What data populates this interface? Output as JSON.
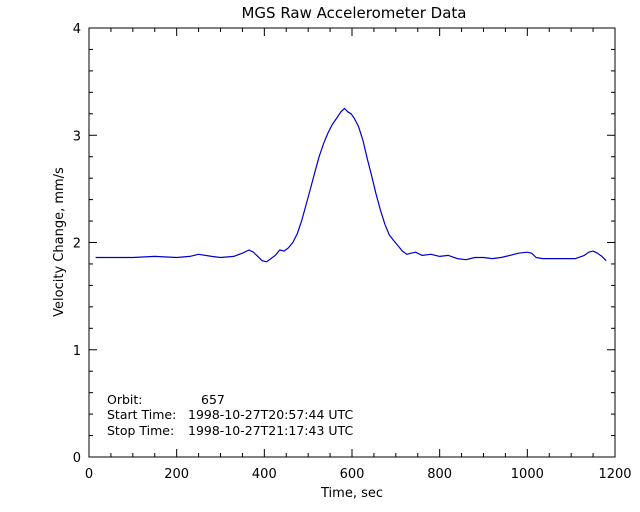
{
  "chart_data": {
    "type": "line",
    "title": "MGS Raw Accelerometer Data",
    "xlabel": "Time, sec",
    "ylabel": "Velocity Change, mm/s",
    "xlim": [
      0,
      1200
    ],
    "ylim": [
      0,
      4
    ],
    "xticks": [
      0,
      200,
      400,
      600,
      800,
      1000,
      1200
    ],
    "yticks": [
      0,
      1,
      2,
      3,
      4
    ],
    "xtick_labels": [
      "0",
      "200",
      "400",
      "600",
      "800",
      "1000",
      "1200"
    ],
    "ytick_labels": [
      "0",
      "1",
      "2",
      "3",
      "4"
    ],
    "grid": false,
    "line_color": "#0000cc",
    "series": [
      {
        "x": [
          15,
          50,
          100,
          150,
          200,
          230,
          250,
          280,
          300,
          330,
          350,
          365,
          375,
          385,
          395,
          405,
          415,
          425,
          435,
          445,
          455,
          465,
          475,
          485,
          495,
          505,
          515,
          525,
          535,
          545,
          555,
          565,
          575,
          583,
          590,
          598,
          605,
          615,
          625,
          635,
          645,
          655,
          665,
          675,
          685,
          695,
          705,
          715,
          725,
          735,
          745,
          760,
          780,
          800,
          820,
          840,
          860,
          880,
          900,
          920,
          940,
          960,
          980,
          1000,
          1010,
          1020,
          1035,
          1050,
          1070,
          1090,
          1110,
          1130,
          1140,
          1150,
          1160,
          1170,
          1180
        ],
        "y": [
          1.86,
          1.86,
          1.86,
          1.87,
          1.86,
          1.87,
          1.89,
          1.87,
          1.86,
          1.87,
          1.9,
          1.93,
          1.91,
          1.87,
          1.83,
          1.82,
          1.85,
          1.88,
          1.93,
          1.92,
          1.95,
          2.0,
          2.08,
          2.2,
          2.35,
          2.5,
          2.65,
          2.8,
          2.92,
          3.02,
          3.1,
          3.16,
          3.22,
          3.25,
          3.22,
          3.2,
          3.16,
          3.08,
          2.95,
          2.78,
          2.62,
          2.45,
          2.3,
          2.17,
          2.07,
          2.02,
          1.97,
          1.92,
          1.89,
          1.9,
          1.91,
          1.88,
          1.89,
          1.87,
          1.88,
          1.85,
          1.84,
          1.86,
          1.86,
          1.85,
          1.86,
          1.88,
          1.9,
          1.91,
          1.9,
          1.86,
          1.85,
          1.85,
          1.85,
          1.85,
          1.85,
          1.88,
          1.91,
          1.92,
          1.9,
          1.87,
          1.83
        ]
      }
    ],
    "annotations": [
      {
        "label": "Orbit:",
        "value": "657"
      },
      {
        "label": "Start Time:",
        "value": "1998-10-27T20:57:44 UTC"
      },
      {
        "label": "Stop Time:",
        "value": "1998-10-27T21:17:43 UTC"
      }
    ]
  }
}
